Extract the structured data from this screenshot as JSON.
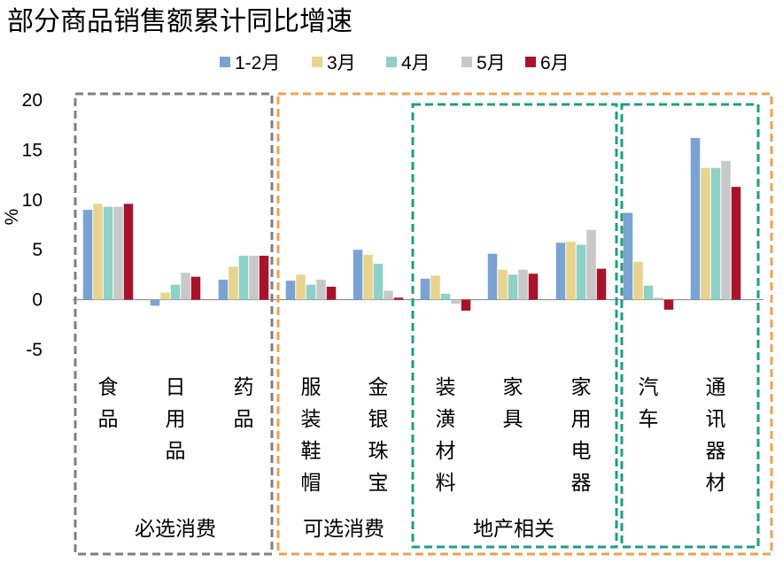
{
  "chart_data": {
    "type": "bar",
    "title": "部分商品销售额累计同比增速",
    "ylabel": "%",
    "ylim": [
      -5,
      20
    ],
    "yticks": [
      20,
      15,
      10,
      5,
      0,
      -5
    ],
    "legend_position": "top",
    "categories": [
      "食品",
      "日用品",
      "药品",
      "服装鞋帽",
      "金银珠宝",
      "装潢材料",
      "家具",
      "家用电器",
      "汽车",
      "通讯器材"
    ],
    "series": [
      {
        "name": "1-2月",
        "color": "#7BA3D1",
        "values": [
          9.0,
          -0.6,
          2.0,
          1.9,
          5.0,
          2.1,
          4.6,
          5.7,
          8.7,
          16.2
        ]
      },
      {
        "name": "3月",
        "color": "#E8D48E",
        "values": [
          9.6,
          0.7,
          3.3,
          2.5,
          4.5,
          2.4,
          3.0,
          5.8,
          3.8,
          13.2
        ]
      },
      {
        "name": "4月",
        "color": "#8ED1C6",
        "values": [
          9.3,
          1.5,
          4.4,
          1.5,
          3.6,
          0.6,
          2.5,
          5.5,
          1.4,
          13.2
        ]
      },
      {
        "name": "5月",
        "color": "#C8C8C8",
        "values": [
          9.3,
          2.7,
          4.4,
          2.0,
          0.9,
          -0.4,
          3.0,
          7.0,
          0.2,
          13.9
        ]
      },
      {
        "name": "6月",
        "color": "#A8132A",
        "values": [
          9.6,
          2.3,
          4.4,
          1.3,
          0.2,
          -1.1,
          2.6,
          3.1,
          -1.0,
          11.3
        ]
      }
    ],
    "groups": [
      {
        "label": "必选消费",
        "categories": [
          "食品",
          "日用品",
          "药品"
        ],
        "border_color": "#7F7F7F"
      },
      {
        "label": "可选消费",
        "categories": [
          "服装鞋帽",
          "金银珠宝",
          "装潢材料",
          "家具",
          "家用电器",
          "汽车",
          "通讯器材"
        ],
        "border_color": "#F0A050"
      },
      {
        "label": "地产相关",
        "categories": [
          "装潢材料",
          "家具",
          "家用电器"
        ],
        "border_color": "#1E9E84"
      },
      {
        "label": "",
        "categories": [
          "汽车",
          "通讯器材"
        ],
        "border_color": "#1E9E84"
      }
    ]
  }
}
